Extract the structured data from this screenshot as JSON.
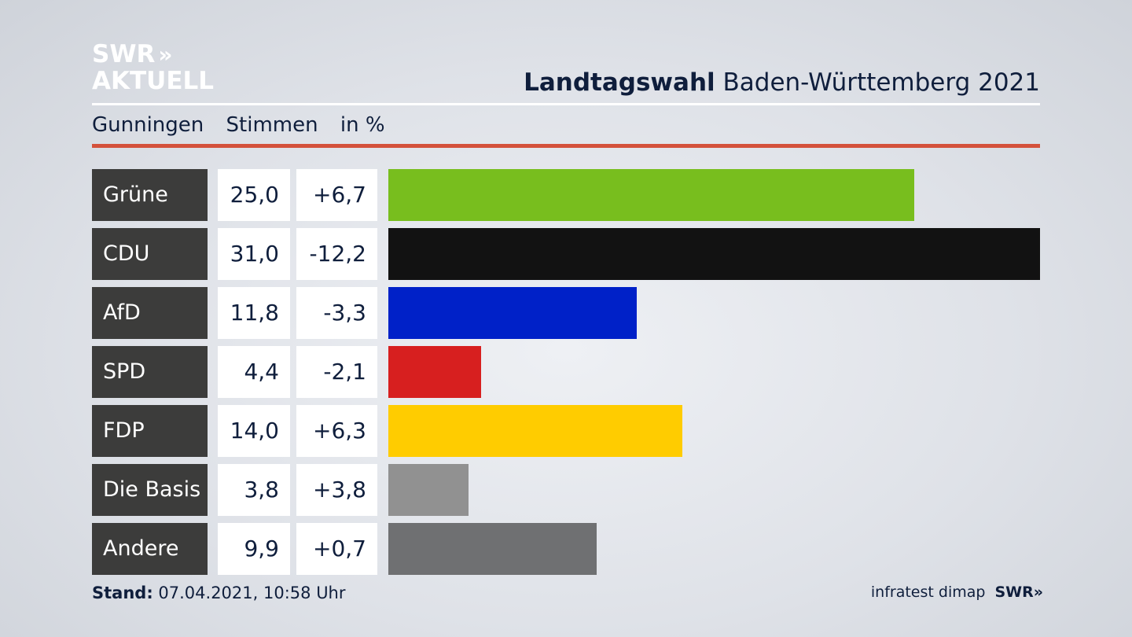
{
  "brand": {
    "line1": "SWR",
    "line1_arrows": "»",
    "line2": "AKTUELL"
  },
  "header": {
    "title_bold": "Landtagswahl",
    "title_rest": "Baden-Württemberg 2021",
    "sub_place": "Gunningen",
    "sub_measure": "Stimmen",
    "sub_unit": "in %"
  },
  "chart_data": {
    "type": "bar",
    "orientation": "horizontal",
    "categories": [
      "Grüne",
      "CDU",
      "AfD",
      "SPD",
      "FDP",
      "Die Basis",
      "Andere"
    ],
    "values": [
      25.0,
      31.0,
      11.8,
      4.4,
      14.0,
      3.8,
      9.9
    ],
    "value_labels": [
      "25,0",
      "31,0",
      "11,8",
      "4,4",
      "14,0",
      "3,8",
      "9,9"
    ],
    "diff_labels": [
      "+6,7",
      "-12,2",
      "-3,3",
      "-2,1",
      "+6,3",
      "+3,8",
      "+0,7"
    ],
    "colors": [
      "#78be1e",
      "#121212",
      "#0021c8",
      "#d71f1f",
      "#ffcc00",
      "#919191",
      "#6f7072"
    ],
    "xlim": [
      0,
      31.0
    ]
  },
  "footer": {
    "stand_label": "Stand:",
    "stand_value": "07.04.2021, 10:58 Uhr",
    "source": "infratest dimap",
    "source_brand": "SWR",
    "source_brand_arrows": "»"
  }
}
